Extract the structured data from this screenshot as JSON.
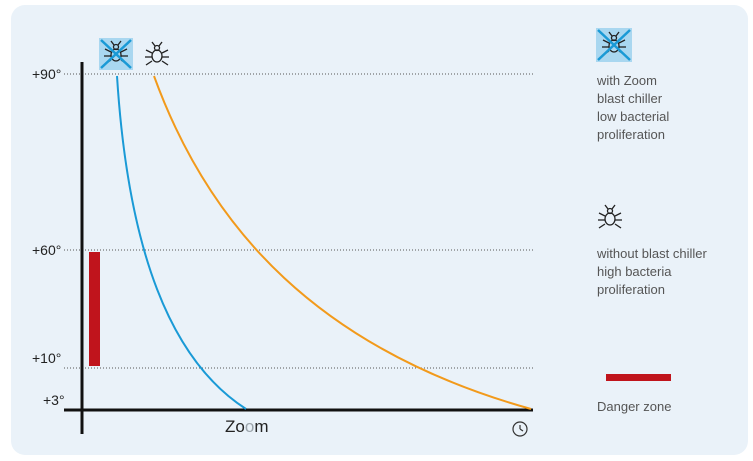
{
  "chart_data": {
    "type": "line",
    "title": "",
    "xlabel_parts": [
      "Zo",
      "o",
      "m"
    ],
    "ylabel": "",
    "y_ticks": [
      "+90°",
      "+60°",
      "+10°",
      "+3°"
    ],
    "series": [
      {
        "name": "with Zoom blast chiller",
        "color": "#1a9ad6",
        "points": [
          [
            0.06,
            90
          ],
          [
            0.1,
            60
          ],
          [
            0.2,
            25
          ],
          [
            0.26,
            3
          ]
        ]
      },
      {
        "name": "without blast chiller",
        "color": "#f29a1b",
        "points": [
          [
            0.12,
            90
          ],
          [
            0.25,
            60
          ],
          [
            0.55,
            25
          ],
          [
            0.82,
            3
          ]
        ]
      }
    ],
    "danger_zone": {
      "from": 10,
      "to": 60,
      "color": "#c0141c"
    },
    "grid": "dotted horizontal at tick levels"
  },
  "legend": {
    "zoom_lines": [
      "with Zoom",
      "blast chiller",
      "low bacterial",
      "proliferation"
    ],
    "without_lines": [
      "without blast chiller",
      "high bacteria",
      "proliferation"
    ],
    "danger_label": "Danger zone"
  },
  "icons": {
    "crossed_bug": "crossed-bug-icon",
    "bug": "bug-icon",
    "clock": "clock-icon"
  },
  "colors": {
    "background_panel": "#eaf2f9",
    "zoom_curve": "#1a9ad6",
    "without_curve": "#f29a1b",
    "danger": "#c0141c",
    "zoom_o": "#9aa3aa"
  }
}
